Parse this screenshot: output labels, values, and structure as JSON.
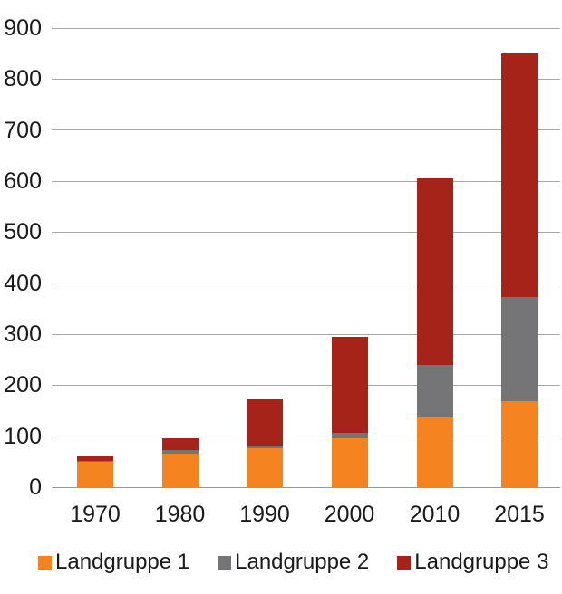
{
  "chart_data": {
    "type": "bar",
    "stacked": true,
    "title": "",
    "xlabel": "",
    "ylabel": "",
    "categories": [
      "1970",
      "1980",
      "1990",
      "2000",
      "2010",
      "2015"
    ],
    "series": [
      {
        "name": "Landgruppe 1",
        "color": "#F5831F",
        "values": [
          49,
          65,
          76,
          96,
          137,
          168
        ]
      },
      {
        "name": "Landgruppe 2",
        "color": "#757578",
        "values": [
          2,
          7,
          6,
          10,
          103,
          204
        ]
      },
      {
        "name": "Landgruppe 3",
        "color": "#A52318",
        "values": [
          10,
          23,
          90,
          189,
          365,
          478
        ]
      }
    ],
    "totals": [
      61,
      95,
      172,
      295,
      605,
      850
    ],
    "ylim": [
      0,
      900
    ],
    "ytick_step": 100,
    "yticks": [
      "0",
      "100",
      "200",
      "300",
      "400",
      "500",
      "600",
      "700",
      "800",
      "900"
    ],
    "grid": true,
    "legend_position": "bottom"
  },
  "colors": {
    "background": "#FFFFFF",
    "gridline": "#A6A6A6",
    "baseline": "#999999",
    "text": "#1A1A1A"
  }
}
